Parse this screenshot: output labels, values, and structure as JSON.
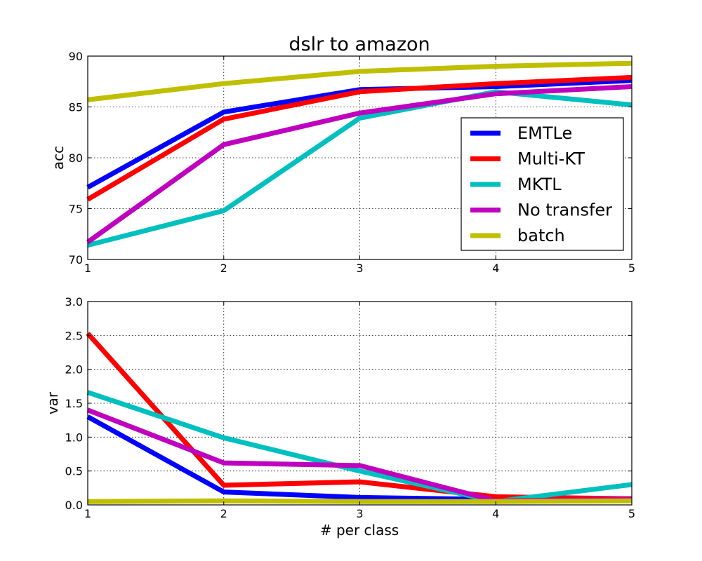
{
  "chart_data": [
    {
      "type": "line",
      "title": "dslr to amazon",
      "xlabel": "",
      "ylabel": "acc",
      "x": [
        1,
        2,
        3,
        4,
        5
      ],
      "x_ticks": [
        "1",
        "2",
        "3",
        "4",
        "5"
      ],
      "y_ticks": [
        "70",
        "75",
        "80",
        "85",
        "90"
      ],
      "xlim": [
        1,
        5
      ],
      "ylim": [
        70,
        90
      ],
      "grid": true,
      "legend_position": "center-right",
      "series": [
        {
          "name": "EMTLe",
          "color": "#0000ff",
          "values": [
            77.1,
            84.5,
            86.7,
            87.0,
            87.6
          ]
        },
        {
          "name": "Multi-KT",
          "color": "#ff0000",
          "values": [
            75.9,
            83.8,
            86.5,
            87.3,
            87.9
          ]
        },
        {
          "name": "MKTL",
          "color": "#00bfbf",
          "values": [
            71.4,
            74.8,
            83.9,
            86.5,
            85.2
          ]
        },
        {
          "name": "No transfer",
          "color": "#bf00bf",
          "values": [
            71.7,
            81.3,
            84.4,
            86.3,
            87.0
          ]
        },
        {
          "name": "batch",
          "color": "#bfbf00",
          "values": [
            85.7,
            87.3,
            88.5,
            89.0,
            89.3
          ]
        }
      ]
    },
    {
      "type": "line",
      "title": "",
      "xlabel": "# per class",
      "ylabel": "var",
      "x": [
        1,
        2,
        3,
        4,
        5
      ],
      "x_ticks": [
        "1",
        "2",
        "3",
        "4",
        "5"
      ],
      "y_ticks": [
        "0.0",
        "0.5",
        "1.0",
        "1.5",
        "2.0",
        "2.5",
        "3.0"
      ],
      "xlim": [
        1,
        5
      ],
      "ylim": [
        0,
        3
      ],
      "grid": true,
      "series": [
        {
          "color": "#0000ff",
          "values": [
            1.3,
            0.19,
            0.11,
            0.08,
            0.09
          ]
        },
        {
          "color": "#ff0000",
          "values": [
            2.53,
            0.29,
            0.34,
            0.12,
            0.09
          ]
        },
        {
          "color": "#00bfbf",
          "values": [
            1.66,
            0.99,
            0.5,
            0.05,
            0.3
          ]
        },
        {
          "color": "#bf00bf",
          "values": [
            1.4,
            0.62,
            0.58,
            0.06,
            0.08
          ]
        },
        {
          "color": "#bfbf00",
          "values": [
            0.05,
            0.06,
            0.05,
            0.05,
            0.06
          ]
        }
      ]
    }
  ]
}
